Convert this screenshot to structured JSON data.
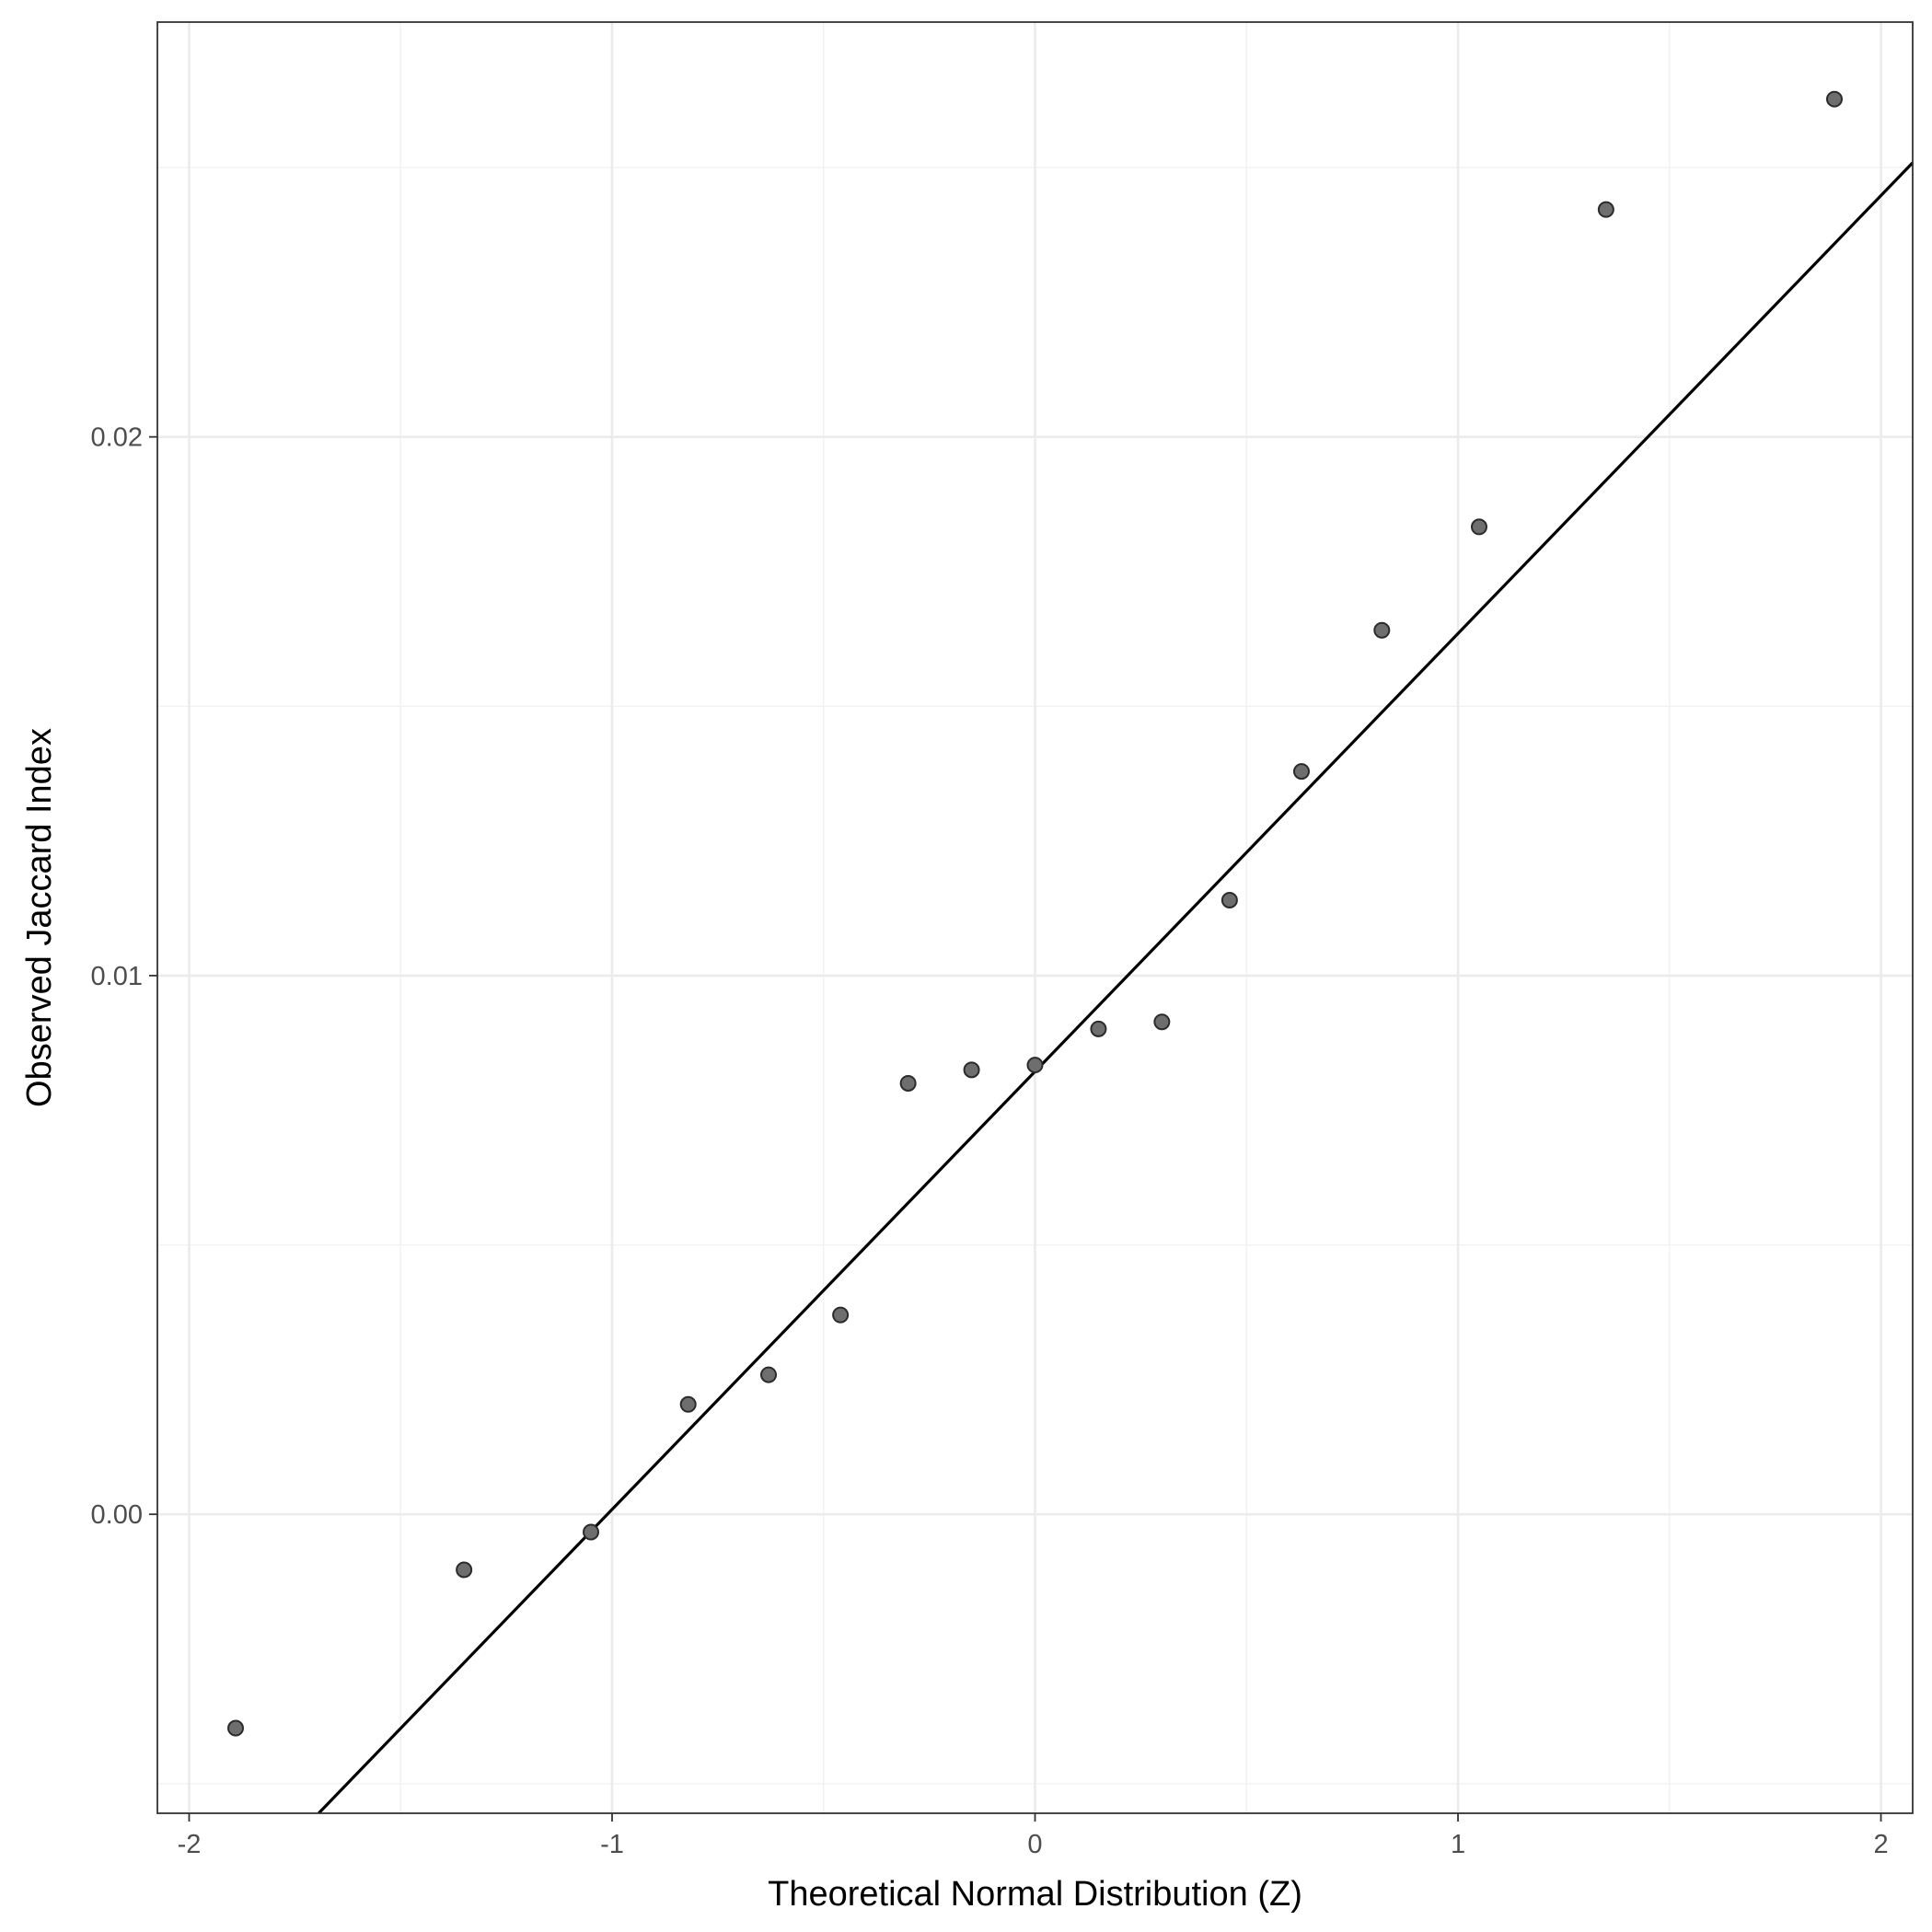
{
  "chart_data": {
    "type": "scatter",
    "title": "",
    "xlabel": "Theoretical Normal Distribution (Z)",
    "ylabel": "Observed Jaccard Index",
    "xlim": [
      -2.075,
      2.075
    ],
    "ylim": [
      -0.00555,
      0.0277
    ],
    "x_ticks": [
      -2,
      -1,
      0,
      1,
      2
    ],
    "x_tick_labels": [
      "-2",
      "-1",
      "0",
      "1",
      "2"
    ],
    "y_ticks": [
      0.0,
      0.01,
      0.02
    ],
    "y_tick_labels": [
      "0.00",
      "0.01",
      "0.02"
    ],
    "grid": true,
    "legend": "none",
    "points": [
      {
        "x": -1.89,
        "y": -0.00397
      },
      {
        "x": -1.35,
        "y": -0.00103
      },
      {
        "x": -1.05,
        "y": -0.00033
      },
      {
        "x": -0.82,
        "y": 0.00204
      },
      {
        "x": -0.63,
        "y": 0.00259
      },
      {
        "x": -0.46,
        "y": 0.0037
      },
      {
        "x": -0.3,
        "y": 0.008
      },
      {
        "x": -0.15,
        "y": 0.00825
      },
      {
        "x": 0.0,
        "y": 0.00834
      },
      {
        "x": 0.15,
        "y": 0.00901
      },
      {
        "x": 0.3,
        "y": 0.00914
      },
      {
        "x": 0.46,
        "y": 0.0114
      },
      {
        "x": 0.63,
        "y": 0.01379
      },
      {
        "x": 0.82,
        "y": 0.01641
      },
      {
        "x": 1.05,
        "y": 0.01833
      },
      {
        "x": 1.35,
        "y": 0.02422
      },
      {
        "x": 1.89,
        "y": 0.02627
      }
    ],
    "reference_line": {
      "intercept": 0.00822,
      "slope": 0.00813
    }
  },
  "colors": {
    "point_fill": "#6e6e6e",
    "point_stroke": "#2b2b2b",
    "line": "#000000",
    "grid": "#ebebeb",
    "panel_border": "#333333"
  }
}
